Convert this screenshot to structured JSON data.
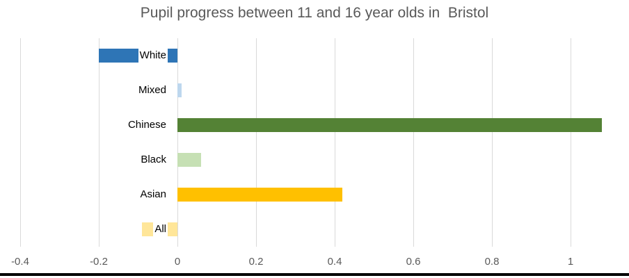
{
  "title": "Pupil progress between 11 and 16 year olds in  Bristol",
  "chart_data": {
    "type": "bar",
    "orientation": "horizontal",
    "title": "Pupil progress between 11 and 16 year olds in  Bristol",
    "categories": [
      "White",
      "Mixed",
      "Chinese",
      "Black",
      "Asian",
      "All"
    ],
    "values": [
      -0.2,
      0.01,
      1.08,
      0.06,
      0.42,
      -0.09
    ],
    "bar_colors": [
      "#2E75B6",
      "#BDD7EE",
      "#548235",
      "#C6E0B4",
      "#FFC000",
      "#FFE699"
    ],
    "x_ticks": [
      -0.4,
      -0.2,
      0,
      0.2,
      0.4,
      0.6,
      0.8,
      1
    ],
    "x_tick_labels": [
      "-0.4",
      "-0.2",
      "0",
      "0.2",
      "0.4",
      "0.6",
      "0.8",
      "1"
    ],
    "xlim": [
      -0.45,
      1.15
    ],
    "xlabel": "",
    "ylabel": "",
    "grid": true,
    "legend": false
  },
  "colors": {
    "background": "#FFFFFF",
    "gridline": "#D9D9D9",
    "axis_text": "#595959",
    "title_text": "#595959",
    "category_text": "#000000",
    "bottom_border": "#000000"
  }
}
